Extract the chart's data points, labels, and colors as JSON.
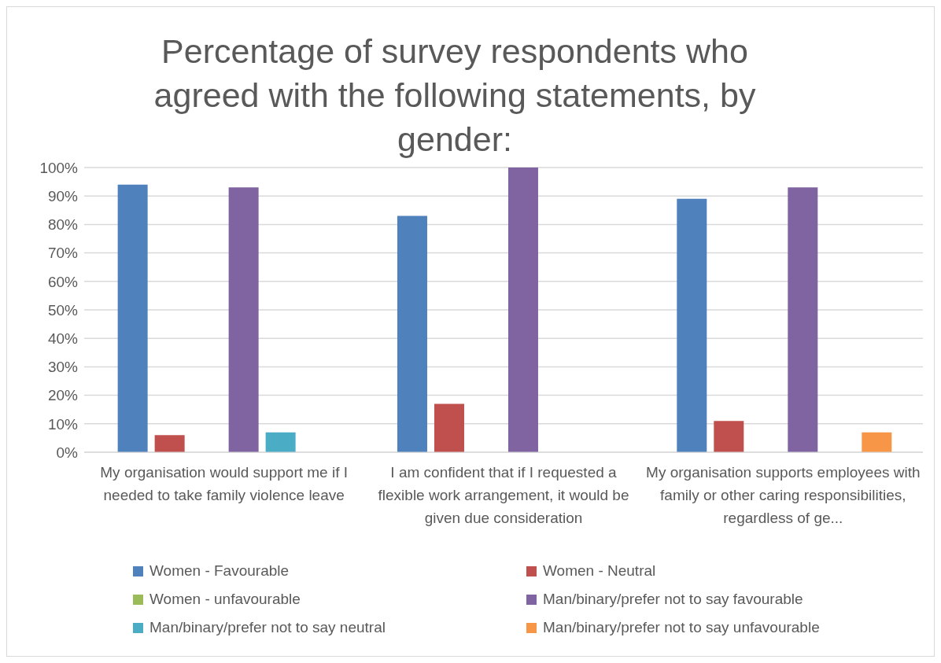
{
  "chart_data": {
    "type": "bar",
    "title": "Percentage of survey respondents who agreed with the following statements, by gender:",
    "categories": [
      "My organisation would support me if I needed to take family violence leave",
      "I am confident that if I requested a flexible work arrangement, it would be given due consideration",
      "My organisation supports employees with family or other caring responsibilities, regardless of ge..."
    ],
    "series": [
      {
        "name": "Women - Favourable",
        "color": "#4f81bd",
        "values": [
          94,
          83,
          89
        ]
      },
      {
        "name": "Women - Neutral",
        "color": "#c0504d",
        "values": [
          6,
          17,
          11
        ]
      },
      {
        "name": "Women - unfavourable",
        "color": "#9bbb59",
        "values": [
          0,
          0,
          0
        ]
      },
      {
        "name": "Man/binary/prefer not to say favourable",
        "color": "#8064a2",
        "values": [
          93,
          100,
          93
        ]
      },
      {
        "name": "Man/binary/prefer not to say neutral",
        "color": "#4bacc6",
        "values": [
          7,
          0,
          0
        ]
      },
      {
        "name": "Man/binary/prefer not to say unfavourable",
        "color": "#f79646",
        "values": [
          0,
          0,
          7
        ]
      }
    ],
    "ylim": [
      0,
      100
    ],
    "yticks": [
      {
        "value": 0,
        "label": "0%"
      },
      {
        "value": 10,
        "label": "10%"
      },
      {
        "value": 20,
        "label": "20%"
      },
      {
        "value": 30,
        "label": "30%"
      },
      {
        "value": 40,
        "label": "40%"
      },
      {
        "value": 50,
        "label": "50%"
      },
      {
        "value": 60,
        "label": "60%"
      },
      {
        "value": 70,
        "label": "70%"
      },
      {
        "value": 80,
        "label": "80%"
      },
      {
        "value": 90,
        "label": "90%"
      },
      {
        "value": 100,
        "label": "100%"
      }
    ],
    "grid": "y",
    "legend": "bottom"
  }
}
